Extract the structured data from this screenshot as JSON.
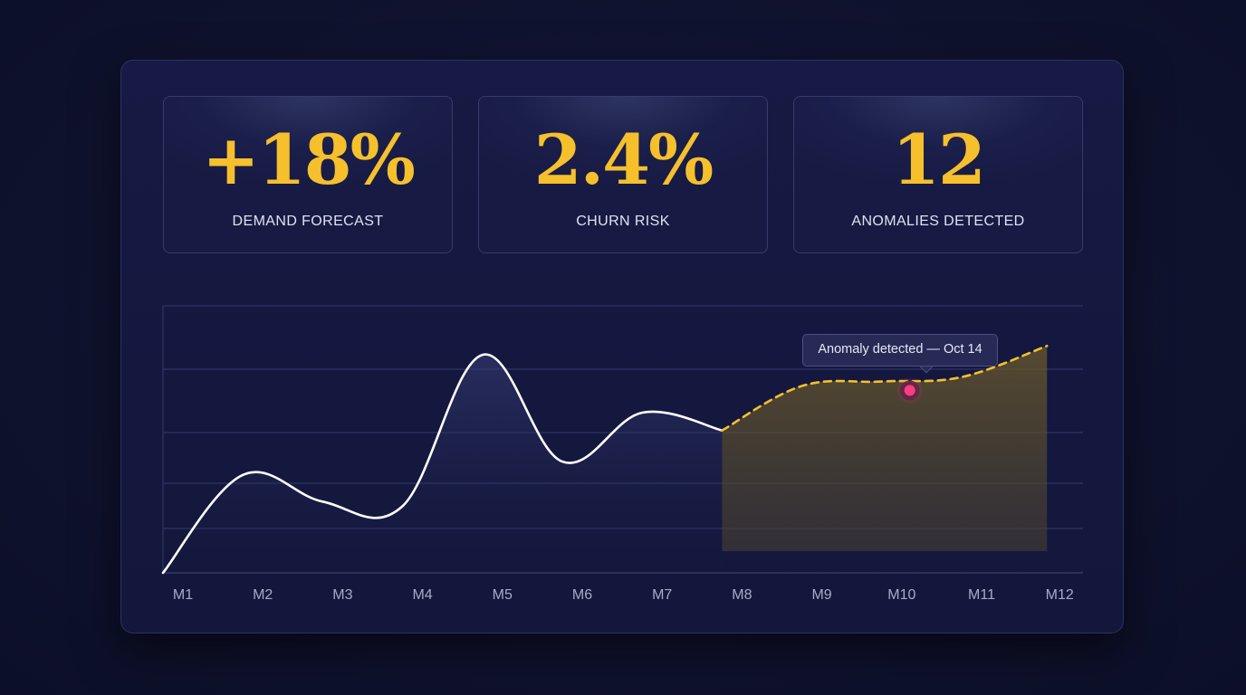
{
  "kpis": [
    {
      "value": "+18%",
      "label": "DEMAND FORECAST"
    },
    {
      "value": "2.4%",
      "label": "CHURN RISK"
    },
    {
      "value": "12",
      "label": "ANOMALIES DETECTED"
    }
  ],
  "colors": {
    "accent": "#f5c02c",
    "actual_line": "#ffffff",
    "anomaly_marker": "#ff3d7f",
    "background": "#13173b"
  },
  "chart_data": {
    "type": "line",
    "categories": [
      "M1",
      "M2",
      "M3",
      "M4",
      "M5",
      "M6",
      "M7",
      "M8",
      "M9",
      "M10",
      "M11",
      "M12"
    ],
    "series": [
      {
        "style": "solid",
        "x": [
          "M1",
          "M2",
          "M3",
          "M4",
          "M5",
          "M6",
          "M7",
          "M8"
        ],
        "values": [
          0,
          2.2,
          1.6,
          1.5,
          4.9,
          2.5,
          3.6,
          3.2
        ]
      },
      {
        "style": "dashed",
        "x": [
          "M8",
          "M9",
          "M10",
          "M11",
          "M12"
        ],
        "values": [
          3.2,
          4.2,
          4.3,
          4.4,
          5.1
        ]
      }
    ],
    "forecast_region": {
      "from": "M8",
      "to": "M12"
    },
    "annotation": {
      "text": "Anomaly detected — Oct 14",
      "x_position": 10.35,
      "value": 4.1
    },
    "ylim": [
      0,
      6
    ],
    "grid": true,
    "y_ticks_visible": false
  }
}
